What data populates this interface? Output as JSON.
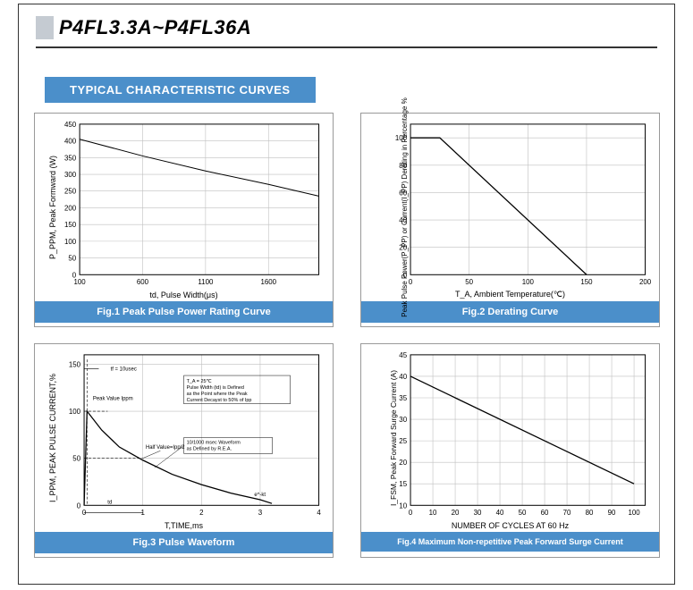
{
  "page": {
    "title": "P4FL3.3A~P4FL36A",
    "section": "TYPICAL CHARACTERISTIC CURVES",
    "banner_bg": "#4b8fca",
    "banner_fg": "#ffffff",
    "title_block_color": "#c5cbd2"
  },
  "fig1": {
    "caption": "Fig.1 Peak Pulse Power Rating Curve",
    "ylabel": "P_PPM, Peak Formward (W)",
    "xlabel": "td, Pulse Width(μs)",
    "xlim": [
      100,
      2000
    ],
    "ylim": [
      0,
      450
    ],
    "xticks": [
      100,
      600,
      1100,
      1600
    ],
    "yticks": [
      0,
      50,
      100,
      150,
      200,
      250,
      300,
      350,
      400,
      450
    ],
    "grid_color": "#bfbfbf",
    "line_color": "#000000",
    "line_width": 1,
    "data": [
      [
        100,
        405
      ],
      [
        600,
        355
      ],
      [
        1100,
        310
      ],
      [
        1600,
        270
      ],
      [
        2000,
        235
      ]
    ]
  },
  "fig2": {
    "caption": "Fig.2 Derating Curve",
    "ylabel": "Peak Pulse Power(P_PP) or Current(I_PP) Derating in Percentage %",
    "xlabel": "T_A, Ambient Temperature(℃)",
    "xlim": [
      0,
      200
    ],
    "ylim": [
      0,
      110
    ],
    "xticks": [
      0,
      50,
      100,
      150,
      200
    ],
    "yticks": [
      0,
      20,
      40,
      60,
      80,
      100
    ],
    "grid_color": "#bfbfbf",
    "line_color": "#000000",
    "line_width": 1.3,
    "data": [
      [
        0,
        100
      ],
      [
        25,
        100
      ],
      [
        150,
        0
      ]
    ]
  },
  "fig3": {
    "caption": "Fig.3 Pulse Waveform",
    "ylabel": "I_PPM, PEAK PULSE  CURRENT,%",
    "xlabel": "T,TIME,ms",
    "xlim": [
      0,
      4.0
    ],
    "ylim": [
      0,
      160
    ],
    "xticks": [
      0,
      1.0,
      2.0,
      3.0,
      4.0
    ],
    "yticks": [
      0,
      50,
      100,
      150
    ],
    "grid_color": "#bfbfbf",
    "line_color": "#000000",
    "line_width": 1.3,
    "notes": {
      "tf": "tf = 10usec",
      "peak": "Peak Value Ippm",
      "half": "Half Value=Ipp/2",
      "cond": "T_A = 25℃\nPulse Width (td) is Defined\nas the Point where the Peak\nCurrent Decayst to 50% of Ipp",
      "wave": "10/1000 msec Waveform\nas Defined by R.E.A.",
      "ekt": "e^-kt",
      "td": "td"
    },
    "data": [
      [
        0,
        0
      ],
      [
        0.05,
        100
      ],
      [
        0.3,
        80
      ],
      [
        0.6,
        62
      ],
      [
        1.0,
        48
      ],
      [
        1.5,
        33
      ],
      [
        2.0,
        22
      ],
      [
        2.5,
        13
      ],
      [
        3.0,
        6
      ],
      [
        3.2,
        2
      ]
    ]
  },
  "fig4": {
    "caption": "Fig.4 Maximum Non-repetitive Peak Forward Surge Current",
    "ylabel": "I_FSM, Peak Forward Surge Current (A)",
    "xlabel": "NUMBER OF CYCLES AT 60 Hz",
    "xlim": [
      0,
      105
    ],
    "ylim": [
      10,
      45
    ],
    "xticks": [
      0,
      10,
      20,
      30,
      40,
      50,
      60,
      70,
      80,
      90,
      100
    ],
    "yticks": [
      10,
      15,
      20,
      25,
      30,
      35,
      40,
      45
    ],
    "grid_color": "#bfbfbf",
    "line_color": "#000000",
    "line_width": 1.3,
    "data": [
      [
        0,
        40
      ],
      [
        100,
        15
      ]
    ]
  }
}
